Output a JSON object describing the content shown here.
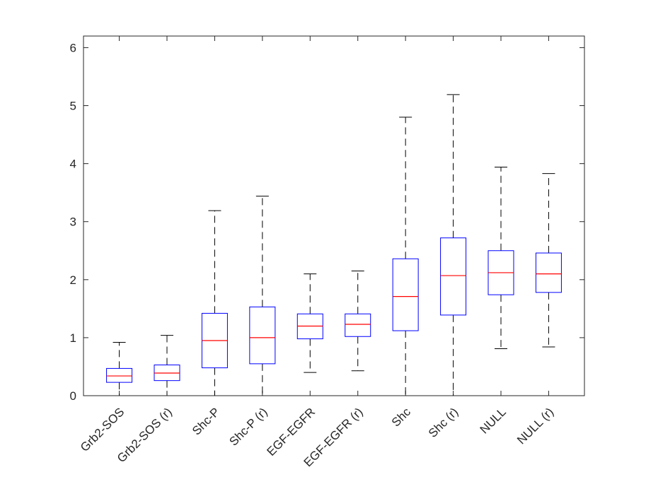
{
  "chart_data": {
    "type": "boxplot",
    "title": "",
    "xlabel": "",
    "ylabel": "",
    "ylim": [
      0,
      6.2
    ],
    "yticks": [
      0,
      1,
      2,
      3,
      4,
      5,
      6
    ],
    "grid": false,
    "colors": {
      "box": "#0000ff",
      "median": "#ff0000",
      "whisker": "#000000",
      "axis": "#262626"
    },
    "categories": [
      "Grb2-SOS",
      "Grb2-SOS (r)",
      "Shc-P",
      "Shc-P (r)",
      "EGF-EGFR",
      "EGF-EGFR (r)",
      "Shc",
      "Shc (r)",
      "NULL",
      "NULL (r)"
    ],
    "boxes": [
      {
        "min": 0.0,
        "q1": 0.23,
        "median": 0.34,
        "q3": 0.47,
        "max": 0.92
      },
      {
        "min": 0.0,
        "q1": 0.26,
        "median": 0.39,
        "q3": 0.53,
        "max": 1.04
      },
      {
        "min": 0.0,
        "q1": 0.48,
        "median": 0.95,
        "q3": 1.42,
        "max": 3.19
      },
      {
        "min": 0.0,
        "q1": 0.55,
        "median": 1.0,
        "q3": 1.53,
        "max": 3.44
      },
      {
        "min": 0.4,
        "q1": 0.98,
        "median": 1.2,
        "q3": 1.41,
        "max": 2.1
      },
      {
        "min": 0.43,
        "q1": 1.02,
        "median": 1.23,
        "q3": 1.41,
        "max": 2.15
      },
      {
        "min": 0.0,
        "q1": 1.12,
        "median": 1.71,
        "q3": 2.36,
        "max": 4.8
      },
      {
        "min": 0.0,
        "q1": 1.39,
        "median": 2.07,
        "q3": 2.72,
        "max": 5.19
      },
      {
        "min": 0.81,
        "q1": 1.74,
        "median": 2.12,
        "q3": 2.5,
        "max": 3.94
      },
      {
        "min": 0.84,
        "q1": 1.78,
        "median": 2.1,
        "q3": 2.46,
        "max": 3.83
      }
    ]
  }
}
